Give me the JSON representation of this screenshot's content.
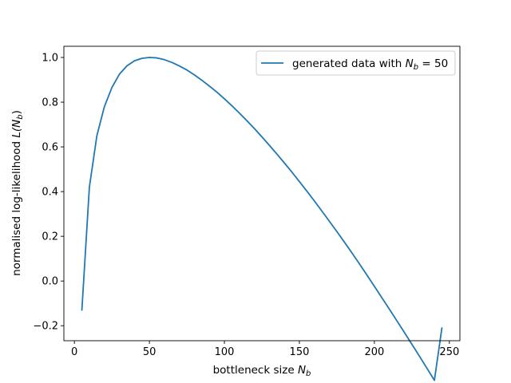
{
  "chart_data": {
    "type": "line",
    "xlabel": "bottleneck size",
    "xlabel_symbol": "N",
    "xlabel_subscript": "b",
    "ylabel": "normalised log-likelihood",
    "ylabel_symbol": "L(N",
    "ylabel_subscript": "b",
    "ylabel_close": ")",
    "xlim": [
      -7,
      257
    ],
    "ylim": [
      -0.267,
      1.05
    ],
    "x_ticks": [
      0,
      50,
      100,
      150,
      200,
      250
    ],
    "y_ticks": [
      -0.2,
      0.0,
      0.2,
      0.4,
      0.6,
      0.8,
      1.0
    ],
    "x_tick_labels": [
      "0",
      "50",
      "100",
      "150",
      "200",
      "250"
    ],
    "y_tick_labels": [
      "−0.2",
      "0.0",
      "0.2",
      "0.4",
      "0.6",
      "0.8",
      "1.0"
    ],
    "grid": false,
    "legend_position": "top-right",
    "series": [
      {
        "name": "generated data with",
        "name_symbol": "N",
        "name_subscript": "b",
        "name_suffix": " = 50",
        "color": "#1f77b4",
        "x": [
          5,
          10,
          15,
          20,
          25,
          30,
          35,
          40,
          45,
          50,
          55,
          60,
          65,
          70,
          75,
          80,
          85,
          90,
          95,
          100,
          105,
          110,
          115,
          120,
          125,
          130,
          135,
          140,
          145,
          150,
          155,
          160,
          165,
          170,
          175,
          180,
          185,
          190,
          195,
          200,
          205,
          210,
          215,
          220,
          225,
          230,
          235,
          240,
          245
        ],
        "y": [
          -0.13,
          0.42,
          0.65,
          0.78,
          0.865,
          0.925,
          0.962,
          0.985,
          0.996,
          1.0,
          0.998,
          0.99,
          0.978,
          0.962,
          0.944,
          0.922,
          0.898,
          0.872,
          0.845,
          0.815,
          0.784,
          0.751,
          0.717,
          0.682,
          0.645,
          0.607,
          0.568,
          0.528,
          0.487,
          0.445,
          0.402,
          0.358,
          0.313,
          0.267,
          0.221,
          0.174,
          0.126,
          0.077,
          0.027,
          -0.024,
          -0.075,
          -0.126,
          -0.178,
          -0.23,
          -0.283,
          -0.336,
          -0.39,
          -0.444,
          -0.21
        ]
      }
    ]
  }
}
